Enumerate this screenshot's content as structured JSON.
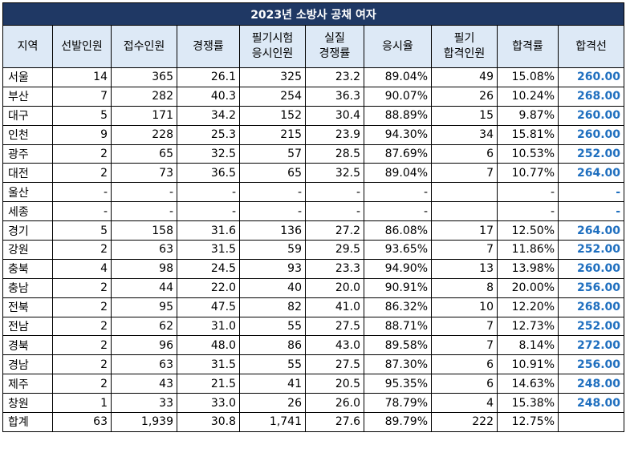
{
  "title": "2023년 소방사 공채 여자",
  "headers": [
    "지역",
    "선발인원",
    "접수인원",
    "경쟁률",
    "필기시험\n응시인원",
    "실질\n경쟁률",
    "응시율",
    "필기\n합격인원",
    "합격률",
    "합격선"
  ],
  "rows": [
    [
      "서울",
      "14",
      "365",
      "26.1",
      "325",
      "23.2",
      "89.04%",
      "49",
      "15.08%",
      "260.00"
    ],
    [
      "부산",
      "7",
      "282",
      "40.3",
      "254",
      "36.3",
      "90.07%",
      "26",
      "10.24%",
      "268.00"
    ],
    [
      "대구",
      "5",
      "171",
      "34.2",
      "152",
      "30.4",
      "88.89%",
      "15",
      "9.87%",
      "260.00"
    ],
    [
      "인천",
      "9",
      "228",
      "25.3",
      "215",
      "23.9",
      "94.30%",
      "34",
      "15.81%",
      "260.00"
    ],
    [
      "광주",
      "2",
      "65",
      "32.5",
      "57",
      "28.5",
      "87.69%",
      "6",
      "10.53%",
      "252.00"
    ],
    [
      "대전",
      "2",
      "73",
      "36.5",
      "65",
      "32.5",
      "89.04%",
      "7",
      "10.77%",
      "264.00"
    ],
    [
      "울산",
      "-",
      "-",
      "-",
      "-",
      "-",
      "-",
      "",
      "-",
      "-"
    ],
    [
      "세종",
      "-",
      "-",
      "-",
      "-",
      "-",
      "-",
      "",
      "-",
      "-"
    ],
    [
      "경기",
      "5",
      "158",
      "31.6",
      "136",
      "27.2",
      "86.08%",
      "17",
      "12.50%",
      "264.00"
    ],
    [
      "강원",
      "2",
      "63",
      "31.5",
      "59",
      "29.5",
      "93.65%",
      "7",
      "11.86%",
      "252.00"
    ],
    [
      "충북",
      "4",
      "98",
      "24.5",
      "93",
      "23.3",
      "94.90%",
      "13",
      "13.98%",
      "260.00"
    ],
    [
      "충남",
      "2",
      "44",
      "22.0",
      "40",
      "20.0",
      "90.91%",
      "8",
      "20.00%",
      "256.00"
    ],
    [
      "전북",
      "2",
      "95",
      "47.5",
      "82",
      "41.0",
      "86.32%",
      "10",
      "12.20%",
      "268.00"
    ],
    [
      "전남",
      "2",
      "62",
      "31.0",
      "55",
      "27.5",
      "88.71%",
      "7",
      "12.73%",
      "252.00"
    ],
    [
      "경북",
      "2",
      "96",
      "48.0",
      "86",
      "43.0",
      "89.58%",
      "7",
      "8.14%",
      "272.00"
    ],
    [
      "경남",
      "2",
      "63",
      "31.5",
      "55",
      "27.5",
      "87.30%",
      "6",
      "10.91%",
      "256.00"
    ],
    [
      "제주",
      "2",
      "43",
      "21.5",
      "41",
      "20.5",
      "95.35%",
      "6",
      "14.63%",
      "248.00"
    ],
    [
      "창원",
      "1",
      "33",
      "33.0",
      "26",
      "26.0",
      "78.79%",
      "4",
      "15.38%",
      "248.00"
    ],
    [
      "합계",
      "63",
      "1,939",
      "30.8",
      "1,741",
      "27.6",
      "89.79%",
      "222",
      "12.75%",
      ""
    ]
  ],
  "colors": {
    "title_bg": "#1f3864",
    "header_bg": "#dde9f6",
    "cutoff_text": "#1f6fbf"
  }
}
